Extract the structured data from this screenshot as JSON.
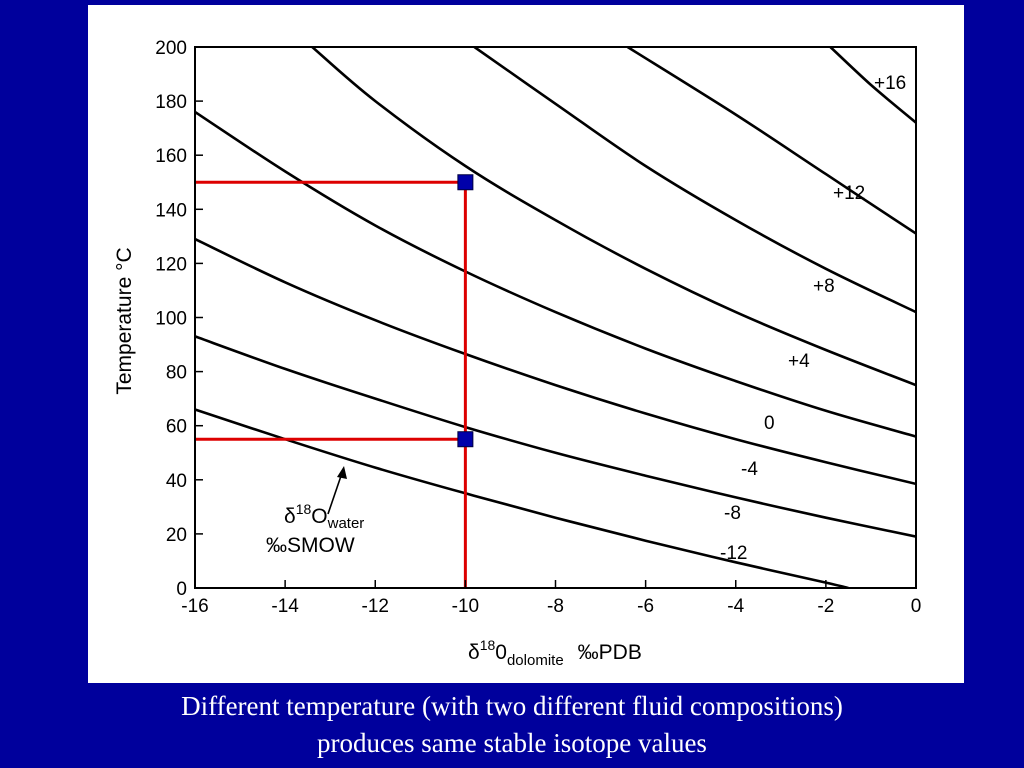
{
  "caption": {
    "line1": "Different temperature (with two different fluid compositions)",
    "line2": "produces same stable isotope values"
  },
  "colors": {
    "slide_background": "#00009c",
    "panel": "#ffffff",
    "curves": "#000000",
    "guide_lines": "#dd0000",
    "markers": "#0000aa"
  },
  "chart_data": {
    "type": "line",
    "x_axis": {
      "label_prefix": "δ",
      "label_sup": "18",
      "label_main": "0",
      "label_sub": "dolomite",
      "label_unit": "‰PDB",
      "range": [
        -16,
        0
      ],
      "ticks": [
        -16,
        -14,
        -12,
        -10,
        -8,
        -6,
        -4,
        -2,
        0
      ]
    },
    "y_axis": {
      "label": "Temperature °C",
      "range": [
        0,
        200
      ],
      "ticks": [
        0,
        20,
        40,
        60,
        80,
        100,
        120,
        140,
        160,
        180,
        200
      ]
    },
    "grid": false,
    "series": [
      {
        "name": "-12",
        "points": [
          [
            -16,
            66
          ],
          [
            -14,
            55
          ],
          [
            -12,
            44.5
          ],
          [
            -10,
            35
          ],
          [
            -8,
            26
          ],
          [
            -6,
            17.5
          ],
          [
            -4,
            9.5
          ],
          [
            -2,
            2
          ],
          [
            -1.5,
            0
          ]
        ]
      },
      {
        "name": "-8",
        "points": [
          [
            -16,
            93
          ],
          [
            -14,
            81
          ],
          [
            -12,
            70
          ],
          [
            -10,
            59.5
          ],
          [
            -8,
            50
          ],
          [
            -6,
            41.5
          ],
          [
            -4,
            33.5
          ],
          [
            -2,
            26
          ],
          [
            0,
            19
          ]
        ]
      },
      {
        "name": "-4",
        "points": [
          [
            -16,
            129
          ],
          [
            -14,
            113
          ],
          [
            -12,
            99
          ],
          [
            -10,
            86.5
          ],
          [
            -8,
            75
          ],
          [
            -6,
            64.5
          ],
          [
            -4,
            55
          ],
          [
            -2,
            46.5
          ],
          [
            0,
            38.5
          ]
        ]
      },
      {
        "name": "0",
        "points": [
          [
            -16,
            176
          ],
          [
            -14,
            154
          ],
          [
            -12,
            134
          ],
          [
            -10,
            117
          ],
          [
            -8,
            102
          ],
          [
            -6,
            88.5
          ],
          [
            -4,
            76.5
          ],
          [
            -2,
            65.5
          ],
          [
            0,
            56
          ]
        ]
      },
      {
        "name": "+4",
        "points": [
          [
            -13.4,
            200
          ],
          [
            -12,
            180
          ],
          [
            -10,
            156
          ],
          [
            -8,
            136
          ],
          [
            -6,
            118
          ],
          [
            -4,
            102
          ],
          [
            -2,
            88
          ],
          [
            0,
            75
          ]
        ]
      },
      {
        "name": "+8",
        "points": [
          [
            -9.8,
            200
          ],
          [
            -8,
            179
          ],
          [
            -6,
            156
          ],
          [
            -4,
            136
          ],
          [
            -2,
            118
          ],
          [
            0,
            102
          ]
        ]
      },
      {
        "name": "+12",
        "points": [
          [
            -6.4,
            200
          ],
          [
            -4,
            175
          ],
          [
            -2,
            153
          ],
          [
            0,
            131
          ]
        ]
      },
      {
        "name": "+16",
        "points": [
          [
            -1.9,
            200
          ],
          [
            -1,
            186
          ],
          [
            0,
            172
          ]
        ]
      }
    ],
    "curve_label_text": [
      "-12",
      "-8",
      "-4",
      "0",
      "+4",
      "+8",
      "+12",
      "+16"
    ],
    "highlighted_points": [
      {
        "x": -10,
        "y": 150
      },
      {
        "x": -10,
        "y": 55
      }
    ],
    "annotation": {
      "prefix": "δ",
      "sup": "18",
      "main": "O",
      "sub": "water",
      "unit_line": "‰SMOW"
    }
  }
}
